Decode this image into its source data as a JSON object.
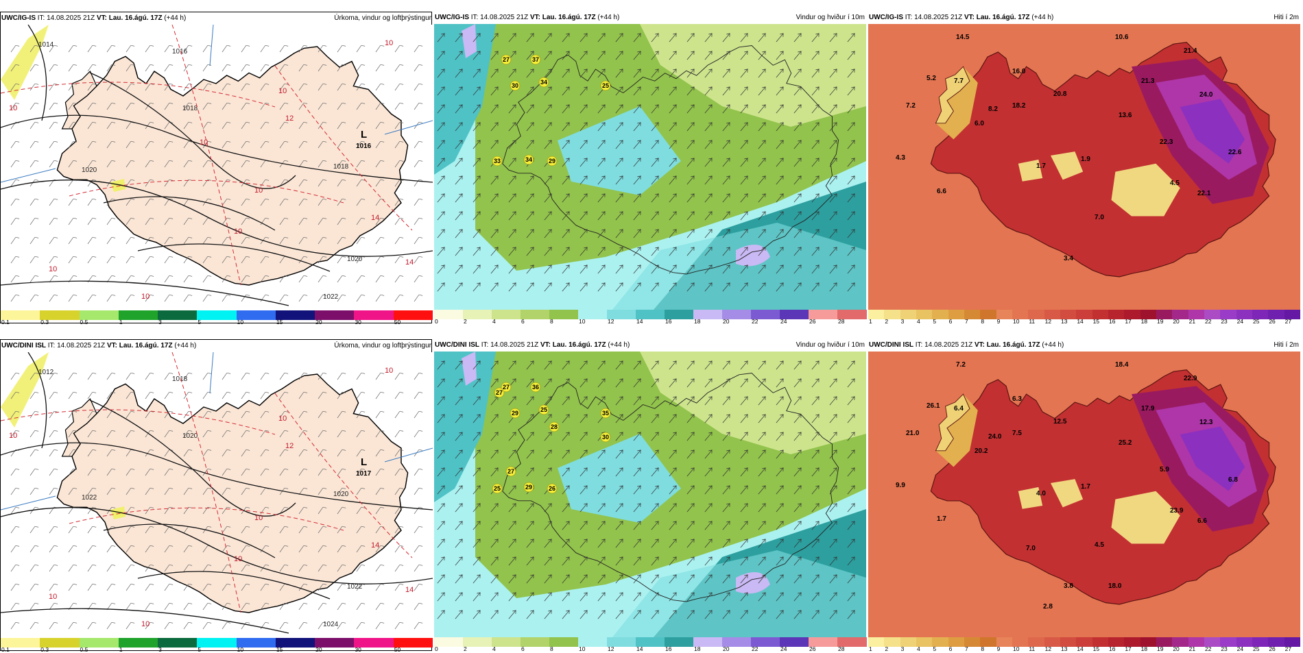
{
  "rows": [
    {
      "model": "UWC/IG-IS",
      "precip": {
        "low": {
          "letter": "L",
          "value": "1016"
        },
        "isobars": [
          "1014",
          "1016",
          "1018",
          "1018",
          "1020",
          "1020",
          "1022"
        ],
        "isotherms": [
          "10",
          "10",
          "10",
          "12",
          "10",
          "14",
          "14",
          "10",
          "10",
          "10",
          "10"
        ]
      },
      "wind": {
        "gusts": [
          "27",
          "37",
          "30",
          "34",
          "25",
          "33",
          "34",
          "29"
        ]
      },
      "temp": {
        "labels": [
          "14.5",
          "10.6",
          "21.4",
          "5.2",
          "7.7",
          "16.0",
          "21.3",
          "7.2",
          "8.2",
          "18.2",
          "20.8",
          "24.0",
          "6.0",
          "13.6",
          "22.3",
          "22.6",
          "4.3",
          "1.7",
          "1.9",
          "6.6",
          "4.5",
          "22.1",
          "7.0",
          "3.4"
        ]
      }
    },
    {
      "model": "UWC/DINI ISL",
      "precip": {
        "low": {
          "letter": "L",
          "value": "1017"
        },
        "isobars": [
          "1012",
          "1018",
          "1020",
          "1020",
          "1022",
          "1022",
          "1024"
        ],
        "isotherms": [
          "10",
          "10",
          "10",
          "12",
          "10",
          "14",
          "14",
          "10",
          "10",
          "10"
        ]
      },
      "wind": {
        "gusts": [
          "27",
          "36",
          "29",
          "25",
          "35",
          "25",
          "29",
          "26",
          "27",
          "28",
          "30",
          "27"
        ]
      },
      "temp": {
        "labels": [
          "7.2",
          "18.4",
          "22.9",
          "26.1",
          "6.4",
          "6.3",
          "17.9",
          "21.0",
          "24.0",
          "7.5",
          "12.5",
          "12.3",
          "20.2",
          "25.2",
          "5.9",
          "6.8",
          "9.9",
          "4.0",
          "1.7",
          "1.7",
          "23.9",
          "6.6",
          "4.5",
          "3.8",
          "7.0",
          "18.0",
          "2.8"
        ]
      }
    }
  ],
  "header": {
    "it_label": "IT:",
    "it_value": "14.08.2025 21Z",
    "vt_label": "VT:",
    "vt_value": "Lau. 16.ágú. 17Z",
    "lead": "(+44 h)"
  },
  "titles": {
    "precip": "Úrkoma, vindur og loftþrýstingur",
    "wind": "Vindur og hviður í 10m",
    "temp": "Hiti í 2m"
  },
  "precip_scale": {
    "ticks": [
      "0.1",
      "0.3",
      "0.5",
      "1",
      "3",
      "5",
      "10",
      "15",
      "20",
      "30",
      "50"
    ],
    "colors": [
      "#fdf59a",
      "#d8d22c",
      "#a6e86c",
      "#1fa32b",
      "#0c6b3e",
      "#00f2f2",
      "#2f6cf0",
      "#11127a",
      "#7b0f6a",
      "#f01489",
      "#ff1010"
    ]
  },
  "wind_scale": {
    "ticks": [
      "0",
      "2",
      "4",
      "6",
      "8",
      "10",
      "12",
      "14",
      "16",
      "18",
      "20",
      "22",
      "24",
      "26",
      "28"
    ],
    "colors": [
      "#fbfbe1",
      "#e6f2b6",
      "#cde48d",
      "#b1d36a",
      "#92c34c",
      "#abf1f0",
      "#7fdde0",
      "#4fc2c6",
      "#2d9f9f",
      "#c9b9f4",
      "#a58ce6",
      "#7c5bd2",
      "#5b36b6",
      "#f79a9a",
      "#e26a6a"
    ]
  },
  "temp_scale": {
    "ticks": [
      "1",
      "2",
      "3",
      "4",
      "5",
      "6",
      "7",
      "8",
      "9",
      "10",
      "11",
      "12",
      "13",
      "14",
      "15",
      "16",
      "17",
      "18",
      "19",
      "20",
      "21",
      "22",
      "23",
      "24",
      "25",
      "26",
      "27"
    ],
    "colors": [
      "#fbf0a0",
      "#f5e18a",
      "#efd276",
      "#e9c262",
      "#e3b050",
      "#dd9d40",
      "#d68934",
      "#d0762c",
      "#e8845a",
      "#e47552",
      "#de684c",
      "#d85a46",
      "#d24c40",
      "#cb3e39",
      "#c23032",
      "#b8242d",
      "#ac1a2c",
      "#9e122e",
      "#9a1a60",
      "#a4288a",
      "#ae36a8",
      "#ac4cc4",
      "#9a3cc8",
      "#8c30c0",
      "#7e26b8",
      "#7020ae",
      "#6418a4"
    ]
  }
}
